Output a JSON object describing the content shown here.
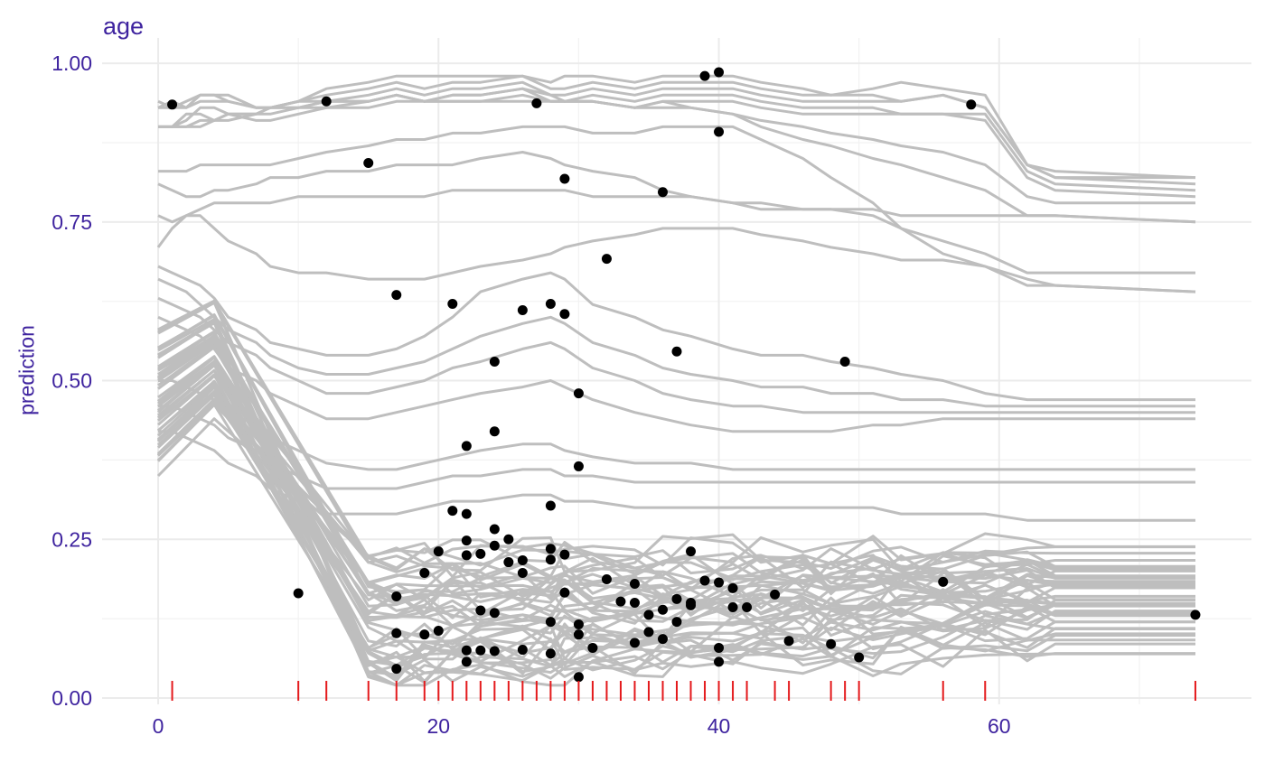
{
  "chart_data": {
    "type": "line",
    "title": "age",
    "xlabel": "",
    "ylabel": "prediction",
    "xlim": [
      -4,
      78
    ],
    "ylim": [
      -0.01,
      1.04
    ],
    "x_ticks": [
      0,
      20,
      40,
      60
    ],
    "x_tick_labels": [
      "0",
      "20",
      "40",
      "60"
    ],
    "y_ticks": [
      0.0,
      0.25,
      0.5,
      0.75,
      1.0
    ],
    "y_tick_labels": [
      "0.00",
      "0.25",
      "0.50",
      "0.75",
      "1.00"
    ],
    "grid": true,
    "legend": "none",
    "colors": {
      "lines": "#bebebe",
      "points": "#000000",
      "rug": "#e41a1c",
      "text": "#3f249f",
      "grid": "#ebebeb"
    },
    "grid_x": [
      0,
      1,
      2,
      3,
      4,
      5,
      7,
      8,
      10,
      12,
      15,
      17,
      19,
      21,
      23,
      26,
      28,
      29,
      31,
      34,
      36,
      38,
      41,
      43,
      46,
      48,
      51,
      53,
      56,
      59,
      62,
      64,
      74
    ],
    "ice_top": [
      {
        "y": [
          0.93,
          0.94,
          0.93,
          0.95,
          0.95,
          0.95,
          0.93,
          0.93,
          0.94,
          0.95,
          0.96,
          0.97,
          0.96,
          0.97,
          0.97,
          0.98,
          0.96,
          0.96,
          0.97,
          0.96,
          0.97,
          0.97,
          0.97,
          0.96,
          0.95,
          0.95,
          0.95,
          0.94,
          0.95,
          0.93,
          0.84,
          0.82,
          0.82
        ]
      },
      {
        "y": [
          0.94,
          0.93,
          0.94,
          0.95,
          0.95,
          0.94,
          0.93,
          0.93,
          0.94,
          0.94,
          0.95,
          0.96,
          0.95,
          0.96,
          0.96,
          0.97,
          0.95,
          0.95,
          0.96,
          0.95,
          0.96,
          0.96,
          0.96,
          0.95,
          0.94,
          0.94,
          0.94,
          0.94,
          0.95,
          0.93,
          0.84,
          0.82,
          0.81
        ]
      },
      {
        "y": [
          0.9,
          0.9,
          0.92,
          0.92,
          0.91,
          0.92,
          0.92,
          0.93,
          0.94,
          0.96,
          0.97,
          0.98,
          0.98,
          0.98,
          0.98,
          0.98,
          0.97,
          0.98,
          0.98,
          0.97,
          0.98,
          0.98,
          0.98,
          0.97,
          0.96,
          0.95,
          0.96,
          0.97,
          0.96,
          0.95,
          0.84,
          0.83,
          0.82
        ]
      },
      {
        "y": [
          0.9,
          0.9,
          0.91,
          0.93,
          0.93,
          0.92,
          0.91,
          0.91,
          0.92,
          0.93,
          0.94,
          0.95,
          0.94,
          0.95,
          0.95,
          0.96,
          0.94,
          0.94,
          0.95,
          0.94,
          0.95,
          0.95,
          0.95,
          0.94,
          0.93,
          0.93,
          0.93,
          0.92,
          0.92,
          0.92,
          0.83,
          0.81,
          0.8
        ]
      },
      {
        "y": [
          0.93,
          0.93,
          0.93,
          0.94,
          0.94,
          0.94,
          0.93,
          0.93,
          0.93,
          0.94,
          0.94,
          0.95,
          0.94,
          0.94,
          0.94,
          0.95,
          0.94,
          0.94,
          0.94,
          0.93,
          0.94,
          0.94,
          0.94,
          0.93,
          0.92,
          0.92,
          0.92,
          0.92,
          0.92,
          0.91,
          0.82,
          0.8,
          0.79
        ]
      },
      {
        "y": [
          0.9,
          0.9,
          0.9,
          0.9,
          0.91,
          0.91,
          0.92,
          0.93,
          0.93,
          0.94,
          0.94,
          0.95,
          0.94,
          0.95,
          0.95,
          0.96,
          0.95,
          0.94,
          0.94,
          0.93,
          0.94,
          0.93,
          0.92,
          0.91,
          0.9,
          0.89,
          0.88,
          0.87,
          0.86,
          0.84,
          0.79,
          0.78,
          0.78
        ]
      },
      {
        "y": [
          0.9,
          0.9,
          0.9,
          0.91,
          0.91,
          0.92,
          0.92,
          0.92,
          0.93,
          0.93,
          0.93,
          0.94,
          0.94,
          0.94,
          0.94,
          0.94,
          0.94,
          0.94,
          0.94,
          0.93,
          0.93,
          0.93,
          0.92,
          0.9,
          0.88,
          0.87,
          0.85,
          0.84,
          0.82,
          0.8,
          0.76,
          0.76,
          0.75
        ]
      }
    ],
    "ice_mid": [
      {
        "y": [
          0.83,
          0.83,
          0.83,
          0.84,
          0.84,
          0.84,
          0.84,
          0.84,
          0.85,
          0.86,
          0.87,
          0.88,
          0.88,
          0.89,
          0.89,
          0.9,
          0.9,
          0.9,
          0.89,
          0.89,
          0.9,
          0.9,
          0.9,
          0.88,
          0.85,
          0.82,
          0.78,
          0.74,
          0.7,
          0.68,
          0.66,
          0.65,
          0.64
        ]
      },
      {
        "y": [
          0.81,
          0.8,
          0.79,
          0.79,
          0.8,
          0.8,
          0.81,
          0.82,
          0.82,
          0.83,
          0.83,
          0.84,
          0.84,
          0.84,
          0.85,
          0.86,
          0.85,
          0.84,
          0.83,
          0.82,
          0.8,
          0.79,
          0.78,
          0.77,
          0.77,
          0.77,
          0.76,
          0.74,
          0.72,
          0.7,
          0.67,
          0.67,
          0.67
        ]
      },
      {
        "y": [
          0.76,
          0.75,
          0.76,
          0.77,
          0.78,
          0.78,
          0.78,
          0.78,
          0.79,
          0.79,
          0.79,
          0.79,
          0.79,
          0.8,
          0.8,
          0.8,
          0.8,
          0.8,
          0.79,
          0.79,
          0.79,
          0.79,
          0.78,
          0.78,
          0.77,
          0.77,
          0.77,
          0.76,
          0.76,
          0.76,
          0.76,
          0.76,
          0.75
        ]
      },
      {
        "y": [
          0.71,
          0.74,
          0.76,
          0.76,
          0.74,
          0.72,
          0.7,
          0.68,
          0.67,
          0.67,
          0.66,
          0.66,
          0.66,
          0.67,
          0.68,
          0.69,
          0.7,
          0.71,
          0.72,
          0.73,
          0.74,
          0.74,
          0.74,
          0.73,
          0.72,
          0.71,
          0.7,
          0.69,
          0.69,
          0.68,
          0.65,
          0.65,
          0.64
        ]
      },
      {
        "y": [
          0.68,
          0.67,
          0.66,
          0.65,
          0.63,
          0.6,
          0.58,
          0.56,
          0.55,
          0.54,
          0.54,
          0.55,
          0.57,
          0.6,
          0.64,
          0.66,
          0.67,
          0.66,
          0.62,
          0.6,
          0.58,
          0.57,
          0.55,
          0.54,
          0.54,
          0.53,
          0.52,
          0.51,
          0.5,
          0.48,
          0.47,
          0.47,
          0.47
        ]
      },
      {
        "y": [
          0.66,
          0.65,
          0.64,
          0.62,
          0.6,
          0.58,
          0.56,
          0.54,
          0.52,
          0.51,
          0.51,
          0.52,
          0.53,
          0.55,
          0.57,
          0.59,
          0.6,
          0.59,
          0.56,
          0.54,
          0.52,
          0.51,
          0.5,
          0.49,
          0.49,
          0.48,
          0.48,
          0.47,
          0.47,
          0.46,
          0.46,
          0.46,
          0.46
        ]
      },
      {
        "y": [
          0.63,
          0.62,
          0.61,
          0.6,
          0.58,
          0.56,
          0.54,
          0.52,
          0.5,
          0.48,
          0.48,
          0.49,
          0.5,
          0.52,
          0.53,
          0.55,
          0.56,
          0.55,
          0.52,
          0.5,
          0.48,
          0.47,
          0.46,
          0.46,
          0.45,
          0.45,
          0.45,
          0.45,
          0.45,
          0.45,
          0.45,
          0.45,
          0.45
        ]
      },
      {
        "y": [
          0.6,
          0.59,
          0.58,
          0.57,
          0.55,
          0.52,
          0.5,
          0.48,
          0.46,
          0.44,
          0.44,
          0.45,
          0.46,
          0.47,
          0.48,
          0.49,
          0.5,
          0.49,
          0.47,
          0.45,
          0.44,
          0.43,
          0.42,
          0.42,
          0.42,
          0.42,
          0.43,
          0.43,
          0.44,
          0.44,
          0.44,
          0.44,
          0.44
        ]
      },
      {
        "y": [
          0.5,
          0.5,
          0.49,
          0.48,
          0.47,
          0.45,
          0.43,
          0.41,
          0.39,
          0.37,
          0.36,
          0.36,
          0.37,
          0.38,
          0.39,
          0.4,
          0.4,
          0.39,
          0.38,
          0.37,
          0.37,
          0.37,
          0.36,
          0.36,
          0.36,
          0.36,
          0.36,
          0.36,
          0.36,
          0.36,
          0.36,
          0.36,
          0.36
        ]
      },
      {
        "y": [
          0.46,
          0.46,
          0.45,
          0.44,
          0.43,
          0.41,
          0.39,
          0.37,
          0.35,
          0.33,
          0.33,
          0.33,
          0.34,
          0.35,
          0.35,
          0.36,
          0.36,
          0.35,
          0.35,
          0.34,
          0.34,
          0.34,
          0.34,
          0.34,
          0.34,
          0.34,
          0.34,
          0.34,
          0.34,
          0.34,
          0.34,
          0.34,
          0.34
        ]
      },
      {
        "y": [
          0.42,
          0.42,
          0.41,
          0.4,
          0.39,
          0.37,
          0.35,
          0.33,
          0.31,
          0.29,
          0.29,
          0.29,
          0.3,
          0.31,
          0.31,
          0.32,
          0.32,
          0.31,
          0.31,
          0.3,
          0.3,
          0.3,
          0.3,
          0.3,
          0.3,
          0.3,
          0.3,
          0.29,
          0.29,
          0.29,
          0.28,
          0.28,
          0.28
        ]
      }
    ],
    "ice_band": {
      "count": 45,
      "y_start_min": 0.35,
      "y_start_max": 0.59,
      "y_drop_min": 0.03,
      "y_drop_max": 0.24,
      "y_end_min": 0.06,
      "y_end_max": 0.26
    },
    "observed_points": [
      {
        "x": 1,
        "y": 0.935
      },
      {
        "x": 12,
        "y": 0.94
      },
      {
        "x": 15,
        "y": 0.843
      },
      {
        "x": 17,
        "y": 0.635
      },
      {
        "x": 21,
        "y": 0.621
      },
      {
        "x": 27,
        "y": 0.937
      },
      {
        "x": 29,
        "y": 0.818
      },
      {
        "x": 36,
        "y": 0.797
      },
      {
        "x": 39,
        "y": 0.98
      },
      {
        "x": 40,
        "y": 0.986
      },
      {
        "x": 40,
        "y": 0.892
      },
      {
        "x": 32,
        "y": 0.692
      },
      {
        "x": 26,
        "y": 0.611
      },
      {
        "x": 28,
        "y": 0.621
      },
      {
        "x": 29,
        "y": 0.605
      },
      {
        "x": 37,
        "y": 0.546
      },
      {
        "x": 24,
        "y": 0.53
      },
      {
        "x": 49,
        "y": 0.53
      },
      {
        "x": 30,
        "y": 0.48
      },
      {
        "x": 24,
        "y": 0.42
      },
      {
        "x": 22,
        "y": 0.397
      },
      {
        "x": 30,
        "y": 0.365
      },
      {
        "x": 28,
        "y": 0.303
      },
      {
        "x": 21,
        "y": 0.295
      },
      {
        "x": 22,
        "y": 0.29
      },
      {
        "x": 24,
        "y": 0.266
      },
      {
        "x": 25,
        "y": 0.25
      },
      {
        "x": 22,
        "y": 0.248
      },
      {
        "x": 24,
        "y": 0.24
      },
      {
        "x": 28,
        "y": 0.235
      },
      {
        "x": 20,
        "y": 0.231
      },
      {
        "x": 38,
        "y": 0.231
      },
      {
        "x": 22,
        "y": 0.225
      },
      {
        "x": 23,
        "y": 0.227
      },
      {
        "x": 29,
        "y": 0.226
      },
      {
        "x": 28,
        "y": 0.218
      },
      {
        "x": 26,
        "y": 0.217
      },
      {
        "x": 25,
        "y": 0.214
      },
      {
        "x": 19,
        "y": 0.197
      },
      {
        "x": 26,
        "y": 0.197
      },
      {
        "x": 32,
        "y": 0.187
      },
      {
        "x": 39,
        "y": 0.185
      },
      {
        "x": 40,
        "y": 0.182
      },
      {
        "x": 34,
        "y": 0.18
      },
      {
        "x": 56,
        "y": 0.183
      },
      {
        "x": 41,
        "y": 0.173
      },
      {
        "x": 10,
        "y": 0.165
      },
      {
        "x": 29,
        "y": 0.166
      },
      {
        "x": 44,
        "y": 0.163
      },
      {
        "x": 17,
        "y": 0.16
      },
      {
        "x": 37,
        "y": 0.156
      },
      {
        "x": 33,
        "y": 0.152
      },
      {
        "x": 34,
        "y": 0.15
      },
      {
        "x": 38,
        "y": 0.15
      },
      {
        "x": 38,
        "y": 0.146
      },
      {
        "x": 41,
        "y": 0.143
      },
      {
        "x": 42,
        "y": 0.143
      },
      {
        "x": 36,
        "y": 0.139
      },
      {
        "x": 23,
        "y": 0.138
      },
      {
        "x": 24,
        "y": 0.134
      },
      {
        "x": 35,
        "y": 0.131
      },
      {
        "x": 74,
        "y": 0.131
      },
      {
        "x": 28,
        "y": 0.12
      },
      {
        "x": 37,
        "y": 0.12
      },
      {
        "x": 30,
        "y": 0.116
      },
      {
        "x": 20,
        "y": 0.106
      },
      {
        "x": 35,
        "y": 0.104
      },
      {
        "x": 17,
        "y": 0.102
      },
      {
        "x": 19,
        "y": 0.1
      },
      {
        "x": 30,
        "y": 0.1
      },
      {
        "x": 36,
        "y": 0.093
      },
      {
        "x": 45,
        "y": 0.09
      },
      {
        "x": 34,
        "y": 0.087
      },
      {
        "x": 48,
        "y": 0.085
      },
      {
        "x": 31,
        "y": 0.079
      },
      {
        "x": 40,
        "y": 0.079
      },
      {
        "x": 26,
        "y": 0.076
      },
      {
        "x": 22,
        "y": 0.075
      },
      {
        "x": 23,
        "y": 0.075
      },
      {
        "x": 24,
        "y": 0.074
      },
      {
        "x": 28,
        "y": 0.07
      },
      {
        "x": 50,
        "y": 0.064
      },
      {
        "x": 22,
        "y": 0.057
      },
      {
        "x": 40,
        "y": 0.057
      },
      {
        "x": 17,
        "y": 0.046
      },
      {
        "x": 30,
        "y": 0.033
      },
      {
        "x": 58,
        "y": 0.935
      }
    ],
    "rug_x": [
      1,
      10,
      12,
      15,
      17,
      19,
      20,
      21,
      22,
      23,
      24,
      25,
      26,
      27,
      28,
      29,
      30,
      31,
      32,
      33,
      34,
      35,
      36,
      37,
      38,
      39,
      40,
      41,
      42,
      44,
      45,
      48,
      49,
      50,
      56,
      59,
      74
    ]
  }
}
